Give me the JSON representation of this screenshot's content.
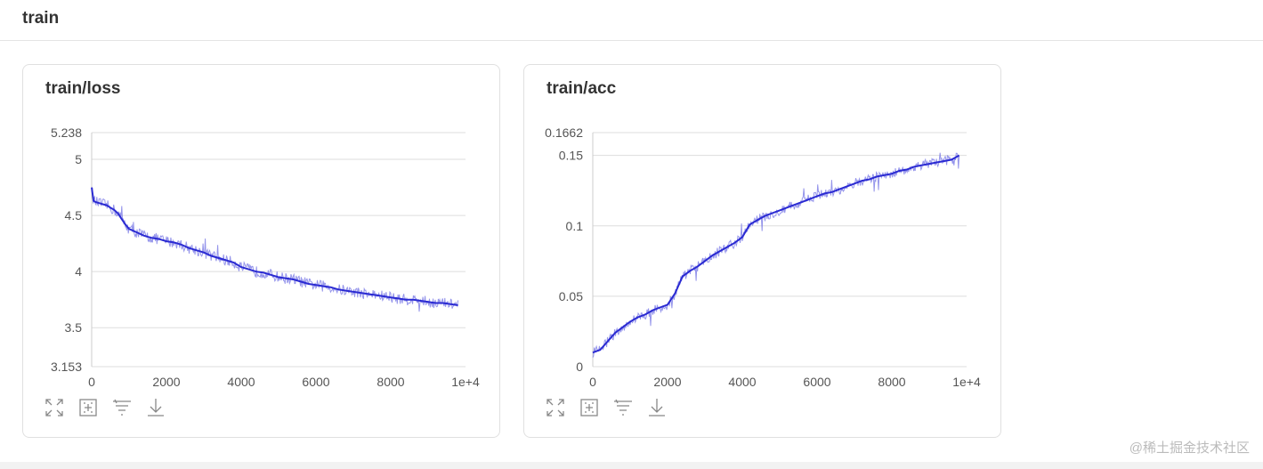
{
  "section": {
    "title": "train"
  },
  "watermark": "@稀土掘金技术社区",
  "toolbar_icons": [
    "fullscreen-icon",
    "fit-domain-icon",
    "toggle-log-scale-icon",
    "download-icon"
  ],
  "colors": {
    "series": "#2a2ad2",
    "raw": "#7b7be6",
    "grid": "#dddddd",
    "axis": "#cccccc"
  },
  "chart_data": [
    {
      "type": "line",
      "title": "train/loss",
      "xlabel": "",
      "ylabel": "",
      "xlim": [
        0,
        10000
      ],
      "ylim": [
        3.153,
        5.238
      ],
      "x_ticks": [
        0,
        2000,
        4000,
        6000,
        8000,
        10000
      ],
      "x_tick_labels": [
        "0",
        "2000",
        "4000",
        "6000",
        "8000",
        "1e+4"
      ],
      "y_ticks": [
        3.153,
        3.5,
        4,
        4.5,
        5,
        5.238
      ],
      "y_tick_labels": [
        "3.153",
        "3.5",
        "4",
        "4.5",
        "5",
        "5.238"
      ],
      "grid": true,
      "series": [
        {
          "x": [
            0,
            50,
            100,
            200,
            300,
            400,
            500,
            600,
            700,
            800,
            900,
            1000,
            1200,
            1400,
            1600,
            1800,
            2000,
            2200,
            2400,
            2600,
            2800,
            3000,
            3200,
            3400,
            3600,
            3800,
            4000,
            4200,
            4400,
            4600,
            4800,
            5000,
            5200,
            5400,
            5600,
            5800,
            6000,
            6200,
            6400,
            6600,
            6800,
            7000,
            7200,
            7400,
            7600,
            7800,
            8000,
            8200,
            8400,
            8600,
            8800,
            9000,
            9200,
            9400,
            9600,
            9800
          ],
          "y": [
            4.75,
            4.63,
            4.62,
            4.61,
            4.6,
            4.59,
            4.57,
            4.55,
            4.52,
            4.47,
            4.42,
            4.38,
            4.35,
            4.32,
            4.3,
            4.29,
            4.27,
            4.26,
            4.24,
            4.21,
            4.19,
            4.17,
            4.14,
            4.12,
            4.1,
            4.08,
            4.04,
            4.02,
            4.0,
            3.99,
            3.97,
            3.95,
            3.94,
            3.93,
            3.91,
            3.89,
            3.88,
            3.87,
            3.86,
            3.84,
            3.83,
            3.82,
            3.81,
            3.8,
            3.79,
            3.78,
            3.77,
            3.76,
            3.75,
            3.75,
            3.74,
            3.73,
            3.72,
            3.72,
            3.71,
            3.7
          ]
        }
      ]
    },
    {
      "type": "line",
      "title": "train/acc",
      "xlabel": "",
      "ylabel": "",
      "xlim": [
        0,
        10000
      ],
      "ylim": [
        0,
        0.1662
      ],
      "x_ticks": [
        0,
        2000,
        4000,
        6000,
        8000,
        10000
      ],
      "x_tick_labels": [
        "0",
        "2000",
        "4000",
        "6000",
        "8000",
        "1e+4"
      ],
      "y_ticks": [
        0,
        0.05,
        0.1,
        0.15,
        0.1662
      ],
      "y_tick_labels": [
        "0",
        "0.05",
        "0.1",
        "0.15",
        "0.1662"
      ],
      "grid": true,
      "series": [
        {
          "x": [
            0,
            100,
            200,
            400,
            600,
            800,
            1000,
            1200,
            1400,
            1600,
            1800,
            2000,
            2200,
            2400,
            2600,
            2800,
            3000,
            3200,
            3400,
            3600,
            3800,
            4000,
            4200,
            4400,
            4600,
            4800,
            5000,
            5200,
            5400,
            5600,
            5800,
            6000,
            6200,
            6400,
            6600,
            6800,
            7000,
            7200,
            7400,
            7600,
            7800,
            8000,
            8200,
            8400,
            8600,
            8800,
            9000,
            9200,
            9400,
            9600,
            9800
          ],
          "y": [
            0.01,
            0.011,
            0.012,
            0.018,
            0.024,
            0.028,
            0.032,
            0.035,
            0.037,
            0.04,
            0.042,
            0.044,
            0.052,
            0.064,
            0.068,
            0.071,
            0.075,
            0.079,
            0.082,
            0.085,
            0.088,
            0.092,
            0.101,
            0.104,
            0.107,
            0.109,
            0.111,
            0.113,
            0.115,
            0.117,
            0.119,
            0.121,
            0.123,
            0.124,
            0.126,
            0.128,
            0.13,
            0.132,
            0.133,
            0.135,
            0.136,
            0.137,
            0.139,
            0.14,
            0.142,
            0.143,
            0.144,
            0.145,
            0.146,
            0.147,
            0.15
          ]
        }
      ]
    }
  ]
}
